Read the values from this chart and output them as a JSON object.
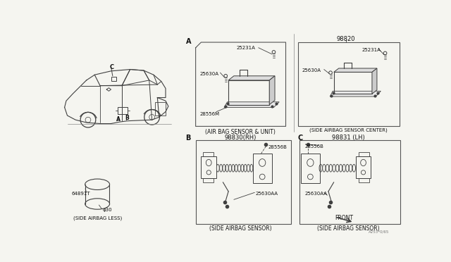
{
  "bg_color": "#f5f5f0",
  "lc": "#404040",
  "lc2": "#555555",
  "part_airbag_unit": "(AIR BAG SENSOR & UNIT)",
  "part_side_center": "(SIDE AIRBAG SENSOR CENTER)",
  "part_side_sensor_b": "(SIDE AIRBAG SENSOR)",
  "part_side_sensor_c": "(SIDE AIRBAG SENSOR)",
  "part_side_less": "(SIDE AIRBAG LESS)",
  "part_98820": "98820",
  "part_98830": "98830(RH)",
  "part_98831": "98831 (LH)",
  "part_25231A_a": "25231A",
  "part_25630A_a": "25630A",
  "part_28556M": "28556M",
  "part_28556B_b": "28556B",
  "part_28556B_c": "28556B",
  "part_25630AA_b": "25630AA",
  "part_25630AA_c": "25630AA",
  "part_25231A_s": "25231A",
  "part_25630A_s": "25630A",
  "part_64891T": "64891T",
  "part_phi30": "φ30",
  "part_front": "FRONT",
  "part_a253": "A253*0/65",
  "label_A": "A",
  "label_B": "B",
  "label_C": "C"
}
